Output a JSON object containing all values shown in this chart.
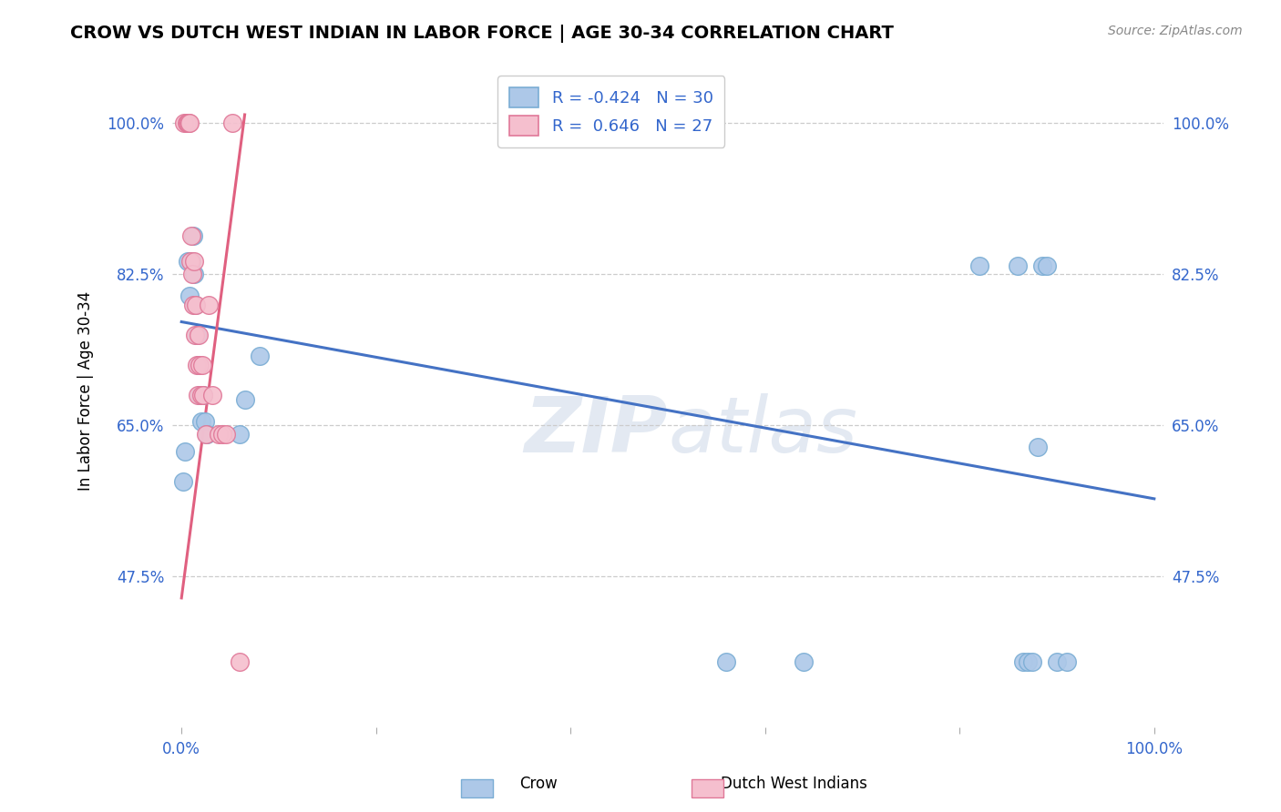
{
  "title": "CROW VS DUTCH WEST INDIAN IN LABOR FORCE | AGE 30-34 CORRELATION CHART",
  "source": "Source: ZipAtlas.com",
  "ylabel": "In Labor Force | Age 30-34",
  "watermark": "ZIPatlas",
  "crow_R": -0.424,
  "crow_N": 30,
  "dwi_R": 0.646,
  "dwi_N": 27,
  "crow_color": "#adc8e8",
  "crow_edge_color": "#7aadd4",
  "dwi_color": "#f5bfce",
  "dwi_edge_color": "#e07898",
  "trend_crow_color": "#4472c4",
  "trend_dwi_color": "#e06080",
  "xmin": -0.01,
  "xmax": 1.01,
  "ymin": 0.3,
  "ymax": 1.08,
  "yticks": [
    0.475,
    0.65,
    0.825,
    1.0
  ],
  "ytick_labels": [
    "47.5%",
    "65.0%",
    "82.5%",
    "100.0%"
  ],
  "grid_color": "#cccccc",
  "crow_x": [
    0.002,
    0.004,
    0.006,
    0.008,
    0.01,
    0.012,
    0.013,
    0.014,
    0.016,
    0.018,
    0.019,
    0.02,
    0.022,
    0.024,
    0.026,
    0.06,
    0.065,
    0.08,
    0.56,
    0.64,
    0.82,
    0.86,
    0.865,
    0.87,
    0.875,
    0.88,
    0.885,
    0.89,
    0.9,
    0.91
  ],
  "crow_y": [
    0.585,
    0.62,
    0.84,
    0.8,
    0.84,
    0.87,
    0.825,
    0.79,
    0.755,
    0.72,
    0.685,
    0.655,
    0.685,
    0.655,
    0.64,
    0.64,
    0.68,
    0.73,
    0.376,
    0.376,
    0.835,
    0.835,
    0.376,
    0.376,
    0.376,
    0.625,
    0.835,
    0.835,
    0.376,
    0.376
  ],
  "dwi_x": [
    0.003,
    0.005,
    0.006,
    0.007,
    0.008,
    0.009,
    0.01,
    0.011,
    0.012,
    0.013,
    0.014,
    0.015,
    0.016,
    0.017,
    0.018,
    0.019,
    0.02,
    0.021,
    0.022,
    0.025,
    0.028,
    0.032,
    0.038,
    0.042,
    0.046,
    0.052,
    0.06
  ],
  "dwi_y": [
    1.0,
    1.0,
    1.0,
    1.0,
    1.0,
    0.84,
    0.87,
    0.825,
    0.79,
    0.84,
    0.755,
    0.79,
    0.72,
    0.685,
    0.755,
    0.72,
    0.685,
    0.72,
    0.685,
    0.64,
    0.79,
    0.685,
    0.64,
    0.64,
    0.64,
    1.0,
    0.376
  ],
  "crow_trend_x": [
    0.0,
    1.0
  ],
  "crow_trend_y": [
    0.77,
    0.565
  ],
  "dwi_trend_x": [
    0.0,
    0.065
  ],
  "dwi_trend_y": [
    0.45,
    1.01
  ],
  "legend_crow_label": "R = -0.424   N = 30",
  "legend_dwi_label": "R =  0.646   N = 27",
  "bottom_legend_crow": "Crow",
  "bottom_legend_dwi": "Dutch West Indians"
}
